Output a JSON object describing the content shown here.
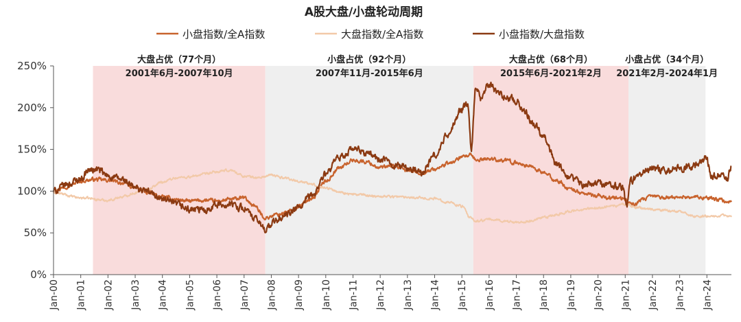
{
  "chart_data": {
    "type": "line",
    "title": "A股大盘/小盘轮动周期",
    "xlabel": "",
    "ylabel": "",
    "ylim": [
      0,
      250
    ],
    "y_ticks": [
      "0%",
      "50%",
      "100%",
      "150%",
      "200%",
      "250%"
    ],
    "y_tick_values": [
      0,
      50,
      100,
      150,
      200,
      250
    ],
    "x_range": [
      2000.0,
      2024.9
    ],
    "x_ticks": [
      "Jan-00",
      "Jan-01",
      "Jan-02",
      "Jan-03",
      "Jan-04",
      "Jan-05",
      "Jan-06",
      "Jan-07",
      "Jan-08",
      "Jan-09",
      "Jan-10",
      "Jan-11",
      "Jan-12",
      "Jan-13",
      "Jan-14",
      "Jan-15",
      "Jan-16",
      "Jan-17",
      "Jan-18",
      "Jan-19",
      "Jan-20",
      "Jan-21",
      "Jan-22",
      "Jan-23",
      "Jan-24"
    ],
    "x_tick_values": [
      2000,
      2001,
      2002,
      2003,
      2004,
      2005,
      2006,
      2007,
      2008,
      2009,
      2010,
      2011,
      2012,
      2013,
      2014,
      2015,
      2016,
      2017,
      2018,
      2019,
      2020,
      2021,
      2022,
      2023,
      2024
    ],
    "grid": false,
    "legend_position": "top-center",
    "periods": [
      {
        "label": "大盘占优（77个月）",
        "range_label": "2001年6月-2007年10月",
        "start": 2001.45,
        "end": 2007.78,
        "color": "#f9dcdc"
      },
      {
        "label": "小盘占优（92个月）",
        "range_label": "2007年11月-2015年6月",
        "start": 2007.78,
        "end": 2015.42,
        "color": "#efefef"
      },
      {
        "label": "大盘占优（68个月）",
        "range_label": "2015年6月-2021年2月",
        "start": 2015.42,
        "end": 2021.12,
        "color": "#f9dcdc"
      },
      {
        "label": "小盘占优（34个月）",
        "range_label": "2021年2月-2024年1月",
        "start": 2021.12,
        "end": 2023.95,
        "color": "#efefef"
      }
    ],
    "series": [
      {
        "name": "小盘指数/全A指数",
        "color": "#c8632d",
        "width": 2.2,
        "noise": 1.8,
        "x": [
          2000,
          2000.5,
          2001,
          2001.5,
          2002,
          2002.5,
          2003,
          2003.5,
          2004,
          2004.5,
          2005,
          2005.5,
          2006,
          2006.5,
          2007,
          2007.3,
          2007.8,
          2008.2,
          2008.7,
          2009,
          2009.5,
          2010,
          2010.5,
          2011,
          2011.5,
          2012,
          2012.5,
          2013,
          2013.5,
          2014,
          2014.5,
          2015,
          2015.3,
          2015.5,
          2016,
          2016.5,
          2017,
          2017.5,
          2018,
          2018.5,
          2019,
          2019.5,
          2020,
          2020.5,
          2021,
          2021.3,
          2021.7,
          2022,
          2022.5,
          2023,
          2023.5,
          2024,
          2024.5,
          2024.9
        ],
        "values": [
          100,
          106,
          112,
          114,
          113,
          110,
          104,
          98,
          93,
          90,
          88,
          89,
          88,
          90,
          92,
          84,
          68,
          72,
          76,
          82,
          92,
          112,
          128,
          137,
          135,
          128,
          130,
          125,
          122,
          126,
          133,
          140,
          143,
          137,
          139,
          137,
          134,
          130,
          122,
          112,
          102,
          97,
          94,
          92,
          90,
          84,
          90,
          94,
          92,
          93,
          93,
          92,
          89,
          87
        ]
      },
      {
        "name": "大盘指数/全A指数",
        "color": "#f2c9a8",
        "width": 2.0,
        "noise": 1.2,
        "x": [
          2000,
          2001,
          2002,
          2002.5,
          2003,
          2003.5,
          2004,
          2004.5,
          2005,
          2005.5,
          2006,
          2006.5,
          2007,
          2007.5,
          2008,
          2008.5,
          2009,
          2009.5,
          2010,
          2010.5,
          2011,
          2012,
          2013,
          2014,
          2014.5,
          2015,
          2015.3,
          2015.5,
          2016,
          2017,
          2017.5,
          2018,
          2018.5,
          2019,
          2020,
          2020.5,
          2021,
          2021.5,
          2022,
          2023,
          2023.5,
          2024,
          2024.5,
          2024.9
        ],
        "values": [
          98,
          92,
          89,
          93,
          98,
          103,
          111,
          116,
          117,
          120,
          123,
          125,
          118,
          116,
          119,
          116,
          112,
          108,
          104,
          99,
          96,
          94,
          93,
          91,
          87,
          82,
          68,
          64,
          66,
          63,
          64,
          68,
          72,
          76,
          80,
          82,
          84,
          80,
          78,
          76,
          70,
          70,
          71,
          69
        ]
      },
      {
        "name": "小盘指数/大盘指数",
        "color": "#8b3a12",
        "width": 2.2,
        "noise": 3.4,
        "x": [
          2000,
          2000.5,
          2001,
          2001.3,
          2001.6,
          2002,
          2002.5,
          2003,
          2003.3,
          2003.7,
          2004,
          2004.5,
          2005,
          2005.5,
          2006,
          2006.5,
          2007,
          2007.4,
          2007.8,
          2008.2,
          2008.6,
          2009,
          2009.5,
          2010,
          2010.5,
          2011,
          2011.5,
          2012,
          2012.5,
          2013,
          2013.5,
          2014,
          2014.5,
          2015,
          2015.2,
          2015.35,
          2015.5,
          2015.7,
          2016,
          2016.3,
          2016.7,
          2017,
          2017.3,
          2017.6,
          2018,
          2018.5,
          2019,
          2019.5,
          2020,
          2020.5,
          2020.9,
          2021.05,
          2021.2,
          2021.6,
          2022,
          2022.5,
          2023,
          2023.5,
          2023.8,
          2023.95,
          2024.2,
          2024.5,
          2024.75,
          2024.9
        ],
        "values": [
          100,
          108,
          115,
          125,
          126,
          118,
          114,
          104,
          101,
          96,
          90,
          84,
          78,
          77,
          84,
          84,
          80,
          66,
          55,
          65,
          72,
          80,
          95,
          120,
          140,
          150,
          146,
          138,
          132,
          128,
          122,
          142,
          168,
          198,
          205,
          150,
          225,
          210,
          228,
          218,
          212,
          208,
          196,
          182,
          168,
          130,
          115,
          108,
          110,
          108,
          104,
          82,
          112,
          122,
          128,
          126,
          128,
          130,
          134,
          140,
          118,
          120,
          115,
          130
        ]
      }
    ]
  }
}
